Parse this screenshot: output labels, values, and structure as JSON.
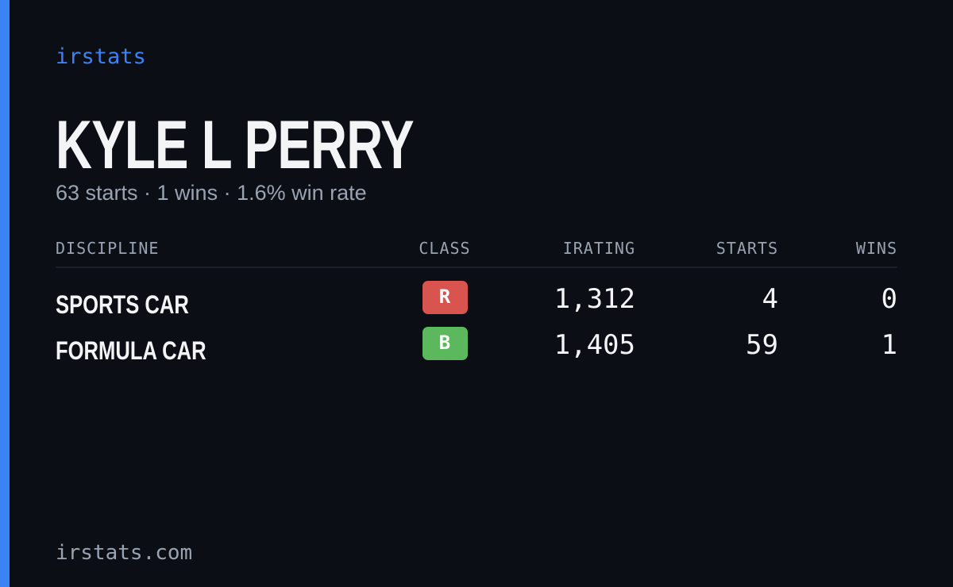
{
  "brand": "irstats",
  "player": {
    "name": "KYLE L PERRY",
    "summary": "63 starts · 1 wins · 1.6% win rate"
  },
  "table": {
    "headers": [
      "DISCIPLINE",
      "CLASS",
      "IRATING",
      "STARTS",
      "WINS"
    ],
    "rows": [
      [
        "SPORTS CAR",
        "R",
        "1,312",
        "4",
        "0"
      ],
      [
        "FORMULA CAR",
        "B",
        "1,405",
        "59",
        "1"
      ]
    ],
    "class_colors": [
      "#d9534f",
      "#5cb85c"
    ]
  },
  "footer": "irstats.com"
}
